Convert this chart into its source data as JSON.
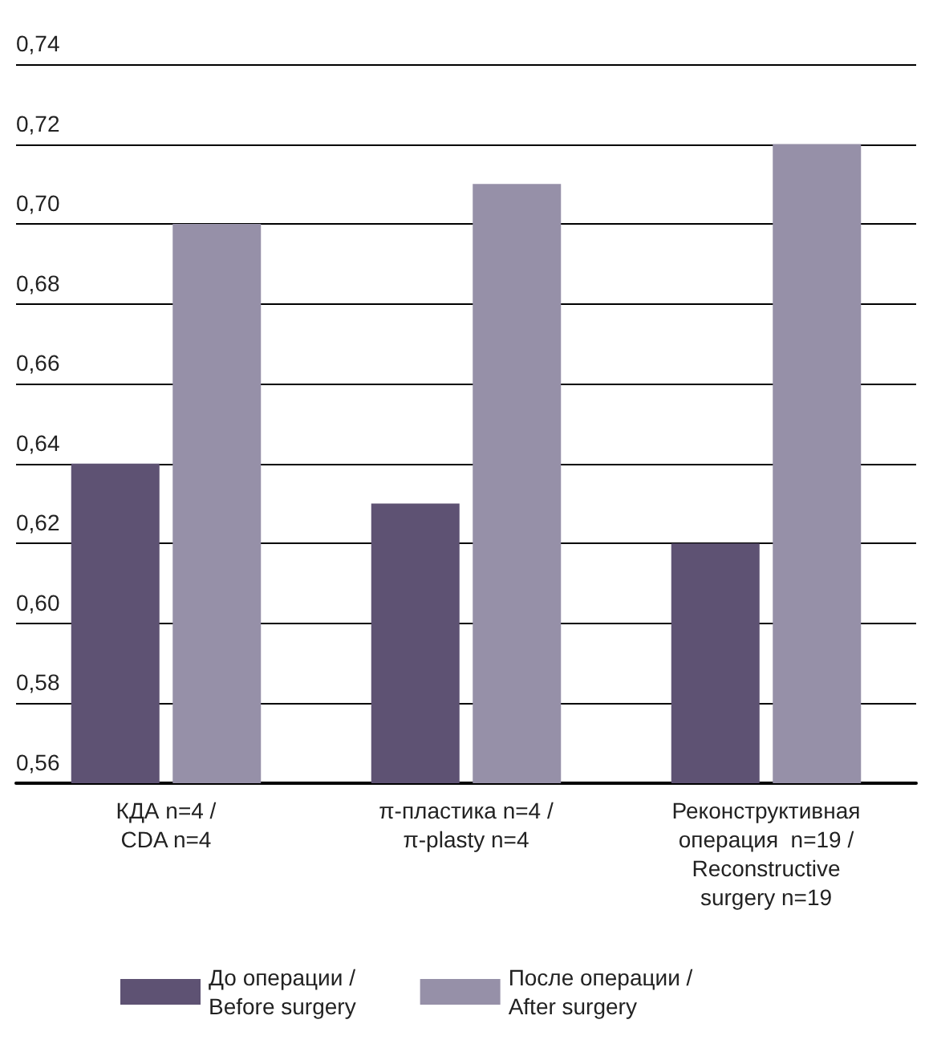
{
  "chart_data": {
    "type": "bar",
    "categories": [
      "КДА n=4 /\nCDA n=4",
      "π-пластика n=4 /\nπ-plasty n=4",
      "Реконструктивная\nоперация  n=19 /\nReconstructive\nsurgery n=19"
    ],
    "series": [
      {
        "name": "До операции /\nBefore surgery",
        "color": "#5e5273",
        "values": [
          0.64,
          0.63,
          0.62
        ]
      },
      {
        "name": "После операции /\nAfter surgery",
        "color": "#9690a8",
        "values": [
          0.7,
          0.71,
          0.72
        ]
      }
    ],
    "ylim": [
      0.56,
      0.74
    ],
    "yticks": [
      {
        "value": 0.56,
        "label": "0,56"
      },
      {
        "value": 0.58,
        "label": "0,58"
      },
      {
        "value": 0.6,
        "label": "0,60"
      },
      {
        "value": 0.62,
        "label": "0,62"
      },
      {
        "value": 0.64,
        "label": "0,64"
      },
      {
        "value": 0.66,
        "label": "0,66"
      },
      {
        "value": 0.68,
        "label": "0,68"
      },
      {
        "value": 0.7,
        "label": "0,70"
      },
      {
        "value": 0.72,
        "label": "0,72"
      },
      {
        "value": 0.74,
        "label": "0,74"
      }
    ],
    "grid": "y",
    "legend": "bottom"
  }
}
